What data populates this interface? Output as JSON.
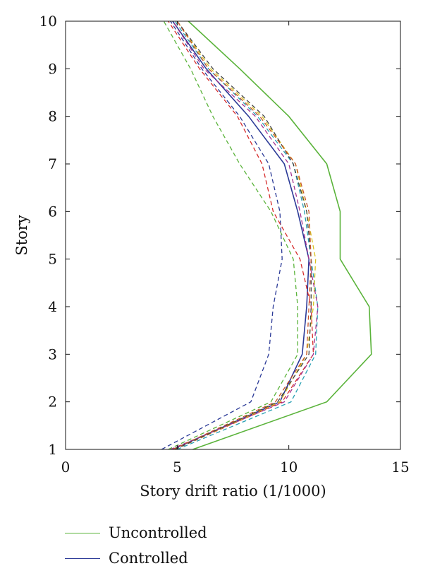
{
  "chart_data": {
    "type": "line",
    "xlabel": "Story drift ratio (1/1000)",
    "ylabel": "Story",
    "xlim": [
      0,
      15
    ],
    "ylim": [
      1,
      10
    ],
    "xticks": [
      0,
      5,
      10,
      15
    ],
    "yticks": [
      1,
      2,
      3,
      4,
      5,
      6,
      7,
      8,
      9,
      10
    ],
    "legend_position": "bottom-left",
    "series": [
      {
        "name": "Uncontrolled",
        "style": "solid",
        "color": "#5ab33a",
        "points": [
          [
            5.7,
            1
          ],
          [
            11.7,
            2
          ],
          [
            13.7,
            3
          ],
          [
            13.6,
            4
          ],
          [
            12.3,
            5
          ],
          [
            12.3,
            6
          ],
          [
            11.7,
            7
          ],
          [
            10.0,
            8
          ],
          [
            7.8,
            9
          ],
          [
            5.5,
            10
          ]
        ]
      },
      {
        "name": "Controlled",
        "style": "solid",
        "color": "#2b3a97",
        "points": [
          [
            4.8,
            1
          ],
          [
            9.6,
            2
          ],
          [
            10.6,
            3
          ],
          [
            10.8,
            4
          ],
          [
            10.9,
            5
          ],
          [
            10.4,
            6
          ],
          [
            9.8,
            7
          ],
          [
            8.2,
            8
          ],
          [
            6.3,
            9
          ],
          [
            4.8,
            10
          ]
        ]
      },
      {
        "style": "dashed",
        "color": "#2b3a97",
        "points": [
          [
            4.3,
            1
          ],
          [
            8.3,
            2
          ],
          [
            9.1,
            3
          ],
          [
            9.3,
            4
          ],
          [
            9.7,
            5
          ],
          [
            9.6,
            6
          ],
          [
            9.1,
            7
          ],
          [
            7.8,
            8
          ],
          [
            6.1,
            9
          ],
          [
            4.7,
            10
          ]
        ]
      },
      {
        "style": "dashed",
        "color": "#5ab33a",
        "points": [
          [
            4.6,
            1
          ],
          [
            9.2,
            2
          ],
          [
            10.4,
            3
          ],
          [
            10.4,
            4
          ],
          [
            10.2,
            5
          ],
          [
            9.2,
            6
          ],
          [
            7.8,
            7
          ],
          [
            6.6,
            8
          ],
          [
            5.6,
            9
          ],
          [
            4.4,
            10
          ]
        ]
      },
      {
        "style": "dashed",
        "color": "#d62b2b",
        "points": [
          [
            4.9,
            1
          ],
          [
            9.7,
            2
          ],
          [
            11.1,
            3
          ],
          [
            11.0,
            4
          ],
          [
            10.5,
            5
          ],
          [
            9.3,
            6
          ],
          [
            8.8,
            7
          ],
          [
            7.7,
            8
          ],
          [
            6.0,
            9
          ],
          [
            4.6,
            10
          ]
        ]
      },
      {
        "style": "dashed",
        "color": "#27a0b3",
        "points": [
          [
            5.0,
            1
          ],
          [
            10.1,
            2
          ],
          [
            11.2,
            3
          ],
          [
            11.3,
            4
          ],
          [
            11.0,
            5
          ],
          [
            10.7,
            6
          ],
          [
            10.2,
            7
          ],
          [
            8.6,
            8
          ],
          [
            6.4,
            9
          ],
          [
            4.9,
            10
          ]
        ]
      },
      {
        "style": "dashed",
        "color": "#a4338f",
        "points": [
          [
            4.7,
            1
          ],
          [
            9.8,
            2
          ],
          [
            11.1,
            3
          ],
          [
            11.3,
            4
          ],
          [
            10.9,
            5
          ],
          [
            10.5,
            6
          ],
          [
            10.0,
            7
          ],
          [
            8.5,
            8
          ],
          [
            6.2,
            9
          ],
          [
            4.8,
            10
          ]
        ]
      },
      {
        "style": "dashed",
        "color": "#d8c21f",
        "points": [
          [
            4.9,
            1
          ],
          [
            9.6,
            2
          ],
          [
            10.8,
            3
          ],
          [
            11.1,
            4
          ],
          [
            11.2,
            5
          ],
          [
            10.8,
            6
          ],
          [
            10.3,
            7
          ],
          [
            8.8,
            8
          ],
          [
            6.5,
            9
          ],
          [
            5.0,
            10
          ]
        ]
      },
      {
        "style": "dashed",
        "color": "#444444",
        "points": [
          [
            4.9,
            1
          ],
          [
            9.5,
            2
          ],
          [
            10.9,
            3
          ],
          [
            11.0,
            4
          ],
          [
            11.0,
            5
          ],
          [
            10.8,
            6
          ],
          [
            10.2,
            7
          ],
          [
            8.9,
            8
          ],
          [
            6.6,
            9
          ],
          [
            5.0,
            10
          ]
        ]
      },
      {
        "style": "dashed",
        "color": "#c8542a",
        "points": [
          [
            4.8,
            1
          ],
          [
            9.4,
            2
          ],
          [
            10.8,
            3
          ],
          [
            10.9,
            4
          ],
          [
            11.0,
            5
          ],
          [
            10.9,
            6
          ],
          [
            10.3,
            7
          ],
          [
            8.7,
            8
          ],
          [
            6.4,
            9
          ],
          [
            5.0,
            10
          ]
        ]
      }
    ]
  }
}
